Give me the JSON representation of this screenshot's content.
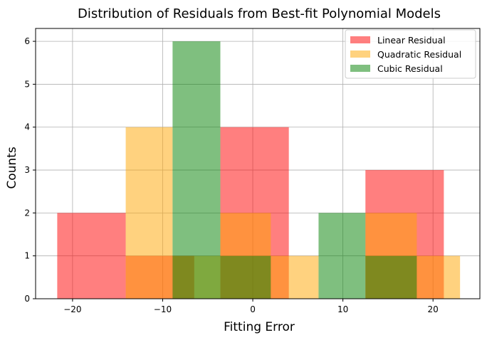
{
  "chart_data": {
    "type": "bar",
    "subtype": "histogram-overlay",
    "title": "Distribution of Residuals from Best-fit Polynomial Models",
    "xlabel": "Fitting Error",
    "ylabel": "Counts",
    "xlim": [
      -24.1,
      25.2
    ],
    "ylim": [
      0,
      6.3
    ],
    "xticks": [
      -20,
      -10,
      0,
      10,
      20
    ],
    "xtick_labels": [
      "−20",
      "−10",
      "0",
      "10",
      "20"
    ],
    "yticks": [
      0,
      1,
      2,
      3,
      4,
      5,
      6
    ],
    "grid": true,
    "bar_opacity": 0.5,
    "legend": {
      "placement": "top-right"
    },
    "series": [
      {
        "name": "Linear Residual",
        "color": "#ff0000",
        "bins": [
          {
            "x0": -21.7,
            "x1": -14.1,
            "count": 2
          },
          {
            "x0": -14.1,
            "x1": -6.5,
            "count": 1
          },
          {
            "x0": -6.5,
            "x1": -3.6,
            "count": 0
          },
          {
            "x0": -3.6,
            "x1": 4.0,
            "count": 4
          },
          {
            "x0": 4.0,
            "x1": 12.5,
            "count": 0
          },
          {
            "x0": 12.5,
            "x1": 21.2,
            "count": 3
          }
        ]
      },
      {
        "name": "Quadratic Residual",
        "color": "#ffa500",
        "bins": [
          {
            "x0": -14.1,
            "x1": -8.9,
            "count": 4
          },
          {
            "x0": -8.9,
            "x1": -3.6,
            "count": 1
          },
          {
            "x0": -3.6,
            "x1": 2.0,
            "count": 2
          },
          {
            "x0": 2.0,
            "x1": 7.3,
            "count": 1
          },
          {
            "x0": 7.3,
            "x1": 12.5,
            "count": 0
          },
          {
            "x0": 12.5,
            "x1": 18.2,
            "count": 2
          },
          {
            "x0": 18.2,
            "x1": 23.0,
            "count": 1
          }
        ]
      },
      {
        "name": "Cubic Residual",
        "color": "#008000",
        "bins": [
          {
            "x0": -8.9,
            "x1": -3.6,
            "count": 6
          },
          {
            "x0": -3.6,
            "x1": 2.0,
            "count": 1
          },
          {
            "x0": 2.0,
            "x1": 7.3,
            "count": 0
          },
          {
            "x0": 7.3,
            "x1": 12.5,
            "count": 2
          },
          {
            "x0": 12.5,
            "x1": 18.2,
            "count": 1
          }
        ]
      }
    ]
  }
}
